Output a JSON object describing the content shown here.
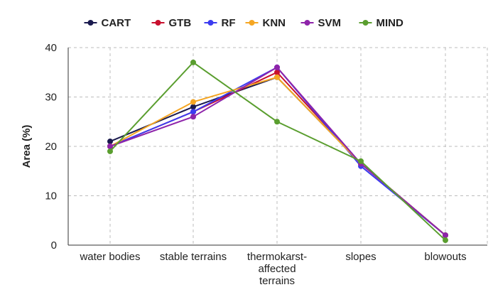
{
  "chart_data": {
    "type": "line",
    "title": "",
    "xlabel": "",
    "ylabel": "Area (%)",
    "ylim": [
      0,
      40
    ],
    "yticks": [
      0,
      10,
      20,
      30,
      40
    ],
    "grid": true,
    "legend_position": "top",
    "categories": [
      [
        "water bodies"
      ],
      [
        "stable terrains"
      ],
      [
        "thermokarst-",
        "affected",
        "terrains"
      ],
      [
        "slopes"
      ],
      [
        "blowouts"
      ]
    ],
    "series": [
      {
        "name": "CART",
        "color": "#1a1a4e",
        "values": [
          21,
          28,
          34,
          16.5,
          2
        ]
      },
      {
        "name": "GTB",
        "color": "#c8102e",
        "values": [
          20,
          27,
          35,
          16.5,
          2
        ]
      },
      {
        "name": "RF",
        "color": "#3b3bf0",
        "values": [
          20,
          27,
          36,
          16,
          2
        ]
      },
      {
        "name": "KNN",
        "color": "#f5a623",
        "values": [
          20,
          29,
          34,
          16.5,
          2
        ]
      },
      {
        "name": "SVM",
        "color": "#8e24aa",
        "values": [
          20,
          26,
          36,
          16.5,
          2
        ]
      },
      {
        "name": "MIND",
        "color": "#5a9e2f",
        "values": [
          19,
          37,
          25,
          17,
          1
        ]
      }
    ]
  }
}
